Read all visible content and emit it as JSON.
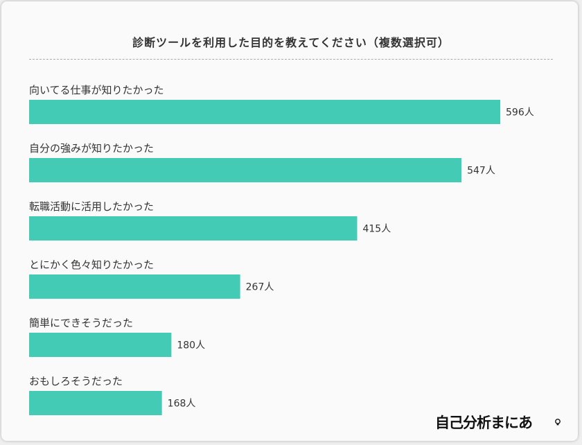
{
  "chart_data": {
    "type": "bar",
    "orientation": "horizontal",
    "title": "診断ツールを利用した目的を教えてください（複数選択可）",
    "categories": [
      "向いてる仕事が知りたかった",
      "自分の強みが知りたかった",
      "転職活動に活用したかった",
      "とにかく色々知りたかった",
      "簡単にできそうだった",
      "おもしろそうだった"
    ],
    "values": [
      596,
      547,
      415,
      267,
      180,
      168
    ],
    "value_labels": [
      "596人",
      "547人",
      "415人",
      "267人",
      "180人",
      "168人"
    ],
    "xlim": [
      0,
      596
    ],
    "grid": false,
    "color": "#44cbb6"
  },
  "logo": {
    "text": "自己分析まにあ"
  }
}
